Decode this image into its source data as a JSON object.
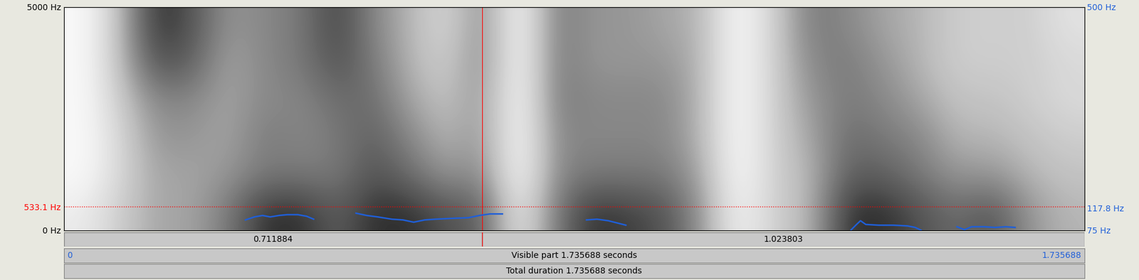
{
  "chart_data": {
    "type": "spectrogram",
    "xlim": [
      0,
      1.735688
    ],
    "ylim": [
      0,
      5000
    ],
    "yticks": [
      {
        "value": 0,
        "label": "0 Hz"
      },
      {
        "value": 5000,
        "label": "5000 Hz"
      }
    ],
    "y2lim": [
      75,
      500
    ],
    "y2ticks": [
      {
        "value": 75,
        "label": "75 Hz"
      },
      {
        "value": 500,
        "label": "500 Hz"
      }
    ],
    "cells_range": [
      0,
      1
    ],
    "cells": [
      [
        0.15,
        0.05,
        0.05,
        0.05,
        0.05,
        0.05
      ],
      [
        0.3,
        0.25,
        0.25,
        0.3,
        0.35,
        0.35
      ],
      [
        0.45,
        0.45,
        0.5,
        0.55,
        0.75,
        0.85
      ],
      [
        0.45,
        0.45,
        0.5,
        0.55,
        0.7,
        0.75
      ],
      [
        0.6,
        0.5,
        0.45,
        0.45,
        0.45,
        0.5
      ],
      [
        0.85,
        0.6,
        0.6,
        0.55,
        0.55,
        0.55
      ],
      [
        0.85,
        0.6,
        0.55,
        0.55,
        0.6,
        0.6
      ],
      [
        0.7,
        0.6,
        0.6,
        0.65,
        0.75,
        0.8
      ],
      [
        0.85,
        0.75,
        0.7,
        0.65,
        0.6,
        0.55
      ],
      [
        0.85,
        0.65,
        0.55,
        0.45,
        0.4,
        0.4
      ],
      [
        0.75,
        0.5,
        0.4,
        0.35,
        0.3,
        0.25
      ],
      [
        0.7,
        0.55,
        0.5,
        0.5,
        0.55,
        0.55
      ],
      [
        0.15,
        0.05,
        0.05,
        0.05,
        0.05,
        0.05
      ],
      [
        0.6,
        0.55,
        0.55,
        0.6,
        0.6,
        0.6
      ],
      [
        0.85,
        0.6,
        0.55,
        0.55,
        0.5,
        0.5
      ],
      [
        0.8,
        0.6,
        0.55,
        0.55,
        0.5,
        0.5
      ],
      [
        0.75,
        0.6,
        0.55,
        0.55,
        0.5,
        0.45
      ],
      [
        0.5,
        0.45,
        0.4,
        0.4,
        0.4,
        0.4
      ],
      [
        0.1,
        0.05,
        0.05,
        0.05,
        0.05,
        0.05
      ],
      [
        0.3,
        0.3,
        0.3,
        0.3,
        0.3,
        0.3
      ],
      [
        0.4,
        0.4,
        0.45,
        0.5,
        0.55,
        0.6
      ],
      [
        0.85,
        0.7,
        0.65,
        0.6,
        0.6,
        0.55
      ],
      [
        0.85,
        0.7,
        0.6,
        0.55,
        0.5,
        0.45
      ],
      [
        0.75,
        0.6,
        0.55,
        0.45,
        0.4,
        0.4
      ],
      [
        0.65,
        0.5,
        0.4,
        0.35,
        0.3,
        0.3
      ],
      [
        0.75,
        0.5,
        0.4,
        0.35,
        0.3,
        0.3
      ],
      [
        0.5,
        0.4,
        0.35,
        0.3,
        0.3,
        0.3
      ],
      [
        0.4,
        0.35,
        0.3,
        0.25,
        0.25,
        0.2
      ]
    ],
    "series": [
      {
        "color": "#1f5fd9",
        "axis": "y2",
        "x": [
          0.309,
          0.324,
          0.338,
          0.351,
          0.366,
          0.38,
          0.398,
          0.413,
          0.425,
          0.46,
          0.497,
          0.515,
          0.534,
          0.558,
          0.577,
          0.595,
          0.614,
          0.632,
          0.657,
          0.688,
          0.707,
          0.725,
          0.746,
          0.8,
          0.889,
          0.907,
          0.926,
          0.941,
          0.956,
          1.1,
          1.339,
          1.347,
          1.355,
          1.364,
          1.386,
          1.411,
          1.435,
          1.448,
          1.458,
          1.49,
          1.519,
          1.532,
          1.544,
          1.565,
          1.584,
          1.602,
          1.618
        ],
        "values": [
          95,
          100.7,
          103.5,
          100.7,
          103.5,
          105,
          105,
          102,
          96.4,
          null,
          107.8,
          103.5,
          100.7,
          96.4,
          95,
          90.7,
          95,
          96.4,
          97.8,
          99.2,
          103.5,
          106.4,
          106.4,
          null,
          95,
          96.4,
          93.5,
          89.3,
          85,
          null,
          76,
          85,
          93.5,
          86.4,
          85,
          85,
          83.6,
          80.7,
          75.5,
          null,
          82,
          76.4,
          82,
          82,
          80.7,
          82,
          80.7
        ]
      }
    ],
    "cursor": {
      "color": "#ff0000",
      "frequency": {
        "value": 533.1,
        "label": "533.1 Hz"
      },
      "pitch": {
        "value": 117.8,
        "label": "117.8 Hz"
      }
    },
    "segments": [
      0.711884,
      1.023803
    ],
    "visible_label": "Visible part 1.735688 seconds",
    "total_label": "Total duration 1.735688 seconds"
  }
}
